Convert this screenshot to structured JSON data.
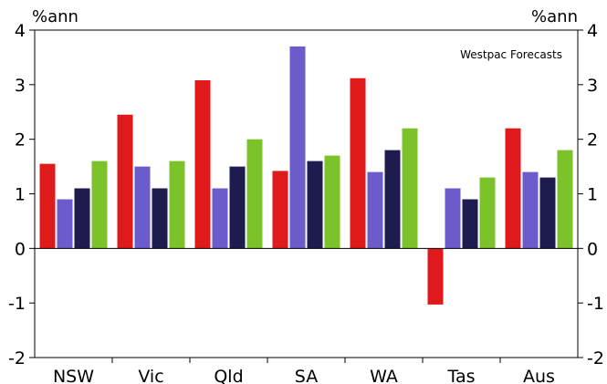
{
  "chart_data": {
    "type": "bar",
    "title": "",
    "xlabel": "",
    "ylabel": "%ann",
    "y2label": "%ann",
    "annotation": "Westpac Forecasts",
    "ylim": [
      -2,
      4
    ],
    "yticks": [
      4,
      3,
      2,
      1,
      0,
      -1,
      -2
    ],
    "grid": false,
    "legend": "none",
    "categories": [
      "NSW",
      "Vic",
      "Qld",
      "SA",
      "WA",
      "Tas",
      "Aus"
    ],
    "series": [
      {
        "color": "#e0191b",
        "values": [
          1.55,
          2.45,
          3.08,
          1.42,
          3.12,
          -1.03,
          2.2
        ]
      },
      {
        "color": "#6b5bcb",
        "values": [
          0.9,
          1.5,
          1.1,
          3.7,
          1.4,
          1.1,
          1.4
        ]
      },
      {
        "color": "#1e1b4f",
        "values": [
          1.1,
          1.1,
          1.5,
          1.6,
          1.8,
          0.9,
          1.3
        ]
      },
      {
        "color": "#7cc22a",
        "values": [
          1.6,
          1.6,
          2.0,
          1.7,
          2.2,
          1.3,
          1.8
        ]
      }
    ]
  }
}
